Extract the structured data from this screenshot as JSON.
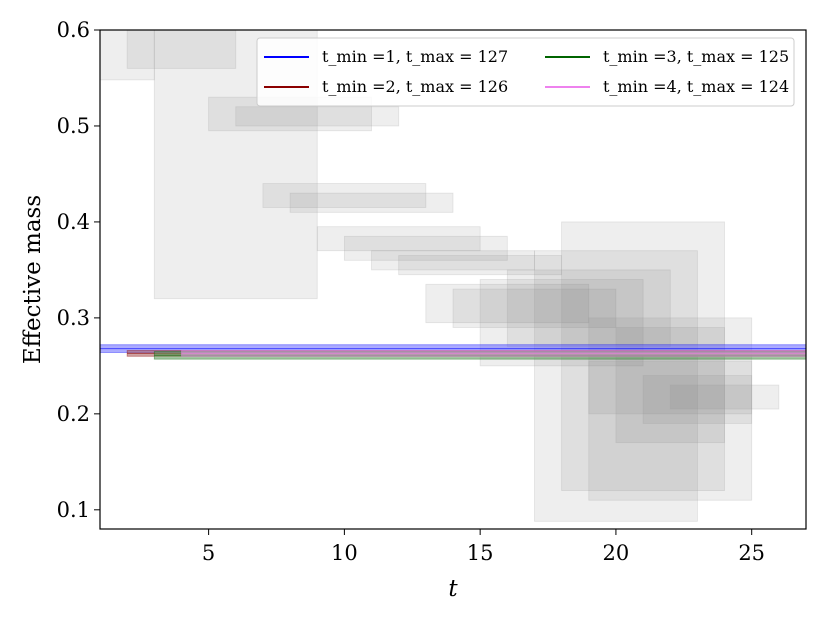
{
  "chart_data": {
    "type": "band-fit-plot",
    "xlabel": "t",
    "ylabel": "Effective mass",
    "xlim": [
      1,
      27
    ],
    "ylim": [
      0.08,
      0.6
    ],
    "xticks": [
      5,
      10,
      15,
      20,
      25
    ],
    "yticks": [
      0.1,
      0.2,
      0.3,
      0.4,
      0.5,
      0.6
    ],
    "tick_labels_x": [
      "5",
      "10",
      "15",
      "20",
      "25"
    ],
    "tick_labels_y": [
      "0.1",
      "0.2",
      "0.3",
      "0.4",
      "0.5",
      "0.6"
    ],
    "legend_position": "top-right",
    "gray_bands": [
      {
        "x": [
          1,
          3
        ],
        "y": [
          0.548,
          0.6
        ]
      },
      {
        "x": [
          2,
          6
        ],
        "y": [
          0.56,
          0.6
        ]
      },
      {
        "x": [
          3,
          9
        ],
        "y": [
          0.32,
          0.6
        ]
      },
      {
        "x": [
          5,
          11
        ],
        "y": [
          0.495,
          0.53
        ]
      },
      {
        "x": [
          6,
          12
        ],
        "y": [
          0.5,
          0.52
        ]
      },
      {
        "x": [
          7,
          13
        ],
        "y": [
          0.415,
          0.44
        ]
      },
      {
        "x": [
          8,
          14
        ],
        "y": [
          0.41,
          0.43
        ]
      },
      {
        "x": [
          9,
          15
        ],
        "y": [
          0.37,
          0.395
        ]
      },
      {
        "x": [
          10,
          16
        ],
        "y": [
          0.36,
          0.385
        ]
      },
      {
        "x": [
          11,
          17
        ],
        "y": [
          0.35,
          0.37
        ]
      },
      {
        "x": [
          12,
          18
        ],
        "y": [
          0.345,
          0.365
        ]
      },
      {
        "x": [
          13,
          19
        ],
        "y": [
          0.295,
          0.335
        ]
      },
      {
        "x": [
          14,
          20
        ],
        "y": [
          0.29,
          0.33
        ]
      },
      {
        "x": [
          15,
          21
        ],
        "y": [
          0.25,
          0.34
        ]
      },
      {
        "x": [
          16,
          22
        ],
        "y": [
          0.27,
          0.35
        ]
      },
      {
        "x": [
          17,
          23
        ],
        "y": [
          0.088,
          0.37
        ]
      },
      {
        "x": [
          18,
          24
        ],
        "y": [
          0.12,
          0.4
        ]
      },
      {
        "x": [
          19,
          25
        ],
        "y": [
          0.2,
          0.3
        ]
      },
      {
        "x": [
          19,
          25
        ],
        "y": [
          0.11,
          0.255
        ]
      },
      {
        "x": [
          20,
          24
        ],
        "y": [
          0.17,
          0.29
        ]
      },
      {
        "x": [
          21,
          25
        ],
        "y": [
          0.19,
          0.24
        ]
      },
      {
        "x": [
          22,
          26
        ],
        "y": [
          0.205,
          0.23
        ]
      }
    ],
    "series": [
      {
        "name": "t_min =1, t_max = 127",
        "t_min": 1,
        "t_max": 127,
        "color": "#0000ff",
        "band_color": "#6666ff",
        "value": 0.268,
        "error": 0.004
      },
      {
        "name": "t_min =2, t_max = 126",
        "t_min": 2,
        "t_max": 126,
        "color": "#8b0000",
        "band_color": "#a85555",
        "value": 0.263,
        "error": 0.003
      },
      {
        "name": "t_min =3, t_max = 125",
        "t_min": 3,
        "t_max": 125,
        "color": "#006400",
        "band_color": "#559955",
        "value": 0.261,
        "error": 0.004
      },
      {
        "name": "t_min =4, t_max = 124",
        "t_min": 4,
        "t_max": 124,
        "color": "#ee82ee",
        "band_color": "#e8a0e8",
        "value": 0.263,
        "error": 0.003
      }
    ]
  }
}
